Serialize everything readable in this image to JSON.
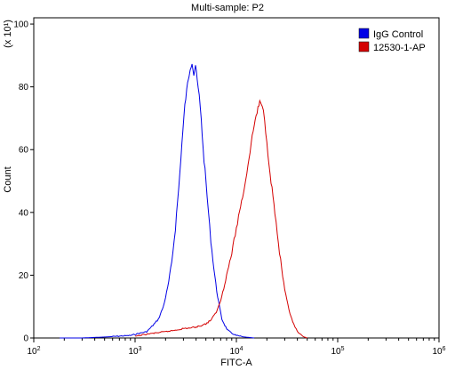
{
  "chart_data": {
    "type": "line",
    "title": "Multi-sample: P2",
    "xlabel": "FITC-A",
    "ylabel": "Count",
    "y_multiplier": "(x 10¹)",
    "x_scale": "log",
    "xlim": [
      100,
      1000000
    ],
    "ylim": [
      0,
      102
    ],
    "x_ticks": [
      {
        "value": 100,
        "base": "10",
        "exp": "2"
      },
      {
        "value": 1000,
        "base": "10",
        "exp": "3"
      },
      {
        "value": 10000,
        "base": "10",
        "exp": "4"
      },
      {
        "value": 100000,
        "base": "10",
        "exp": "5"
      },
      {
        "value": 1000000,
        "base": "10",
        "exp": "6"
      }
    ],
    "y_ticks": [
      "0",
      "20",
      "40",
      "60",
      "80",
      "100"
    ],
    "grid": false,
    "legend_position": "top-right",
    "series": [
      {
        "name": "IgG Control",
        "color": "#0000e6",
        "x": [
          180,
          300,
          500,
          700,
          900,
          1100,
          1300,
          1500,
          1700,
          1900,
          2100,
          2300,
          2500,
          2700,
          2900,
          3100,
          3300,
          3500,
          3650,
          3800,
          3950,
          4100,
          4300,
          4500,
          4700,
          5000,
          5300,
          5600,
          6000,
          6400,
          6800,
          7200,
          7700,
          8200,
          9000,
          10000,
          11500,
          13000,
          15000
        ],
        "y": [
          0,
          0,
          0.3,
          0.6,
          0.8,
          1.5,
          2,
          4,
          6,
          10,
          16,
          24,
          35,
          48,
          62,
          74,
          81,
          86,
          88,
          84,
          87,
          82,
          77,
          70,
          60,
          50,
          40,
          31,
          22,
          15,
          10,
          6,
          4,
          2.5,
          1.5,
          0.8,
          0.4,
          0.2,
          0
        ]
      },
      {
        "name": "12530-1-AP",
        "color": "#d40000",
        "x": [
          1000,
          1200,
          1500,
          2000,
          2500,
          3000,
          3500,
          4000,
          4500,
          5000,
          5500,
          6000,
          6500,
          7000,
          7500,
          8000,
          9000,
          10000,
          11000,
          12000,
          13000,
          14000,
          15000,
          16000,
          17000,
          18000,
          19000,
          20000,
          21000,
          22000,
          24000,
          26000,
          28000,
          30000,
          33000,
          36000,
          40000,
          45000,
          50000
        ],
        "y": [
          0.5,
          1,
          1.5,
          2,
          2.5,
          3,
          3.2,
          3.5,
          4,
          4.5,
          5.5,
          7,
          9,
          12,
          16,
          20,
          27,
          35,
          42,
          48,
          55,
          62,
          68,
          72,
          75,
          74,
          70,
          62,
          56,
          50,
          40,
          30,
          22,
          15,
          9,
          5,
          2,
          0.5,
          0
        ]
      }
    ]
  }
}
